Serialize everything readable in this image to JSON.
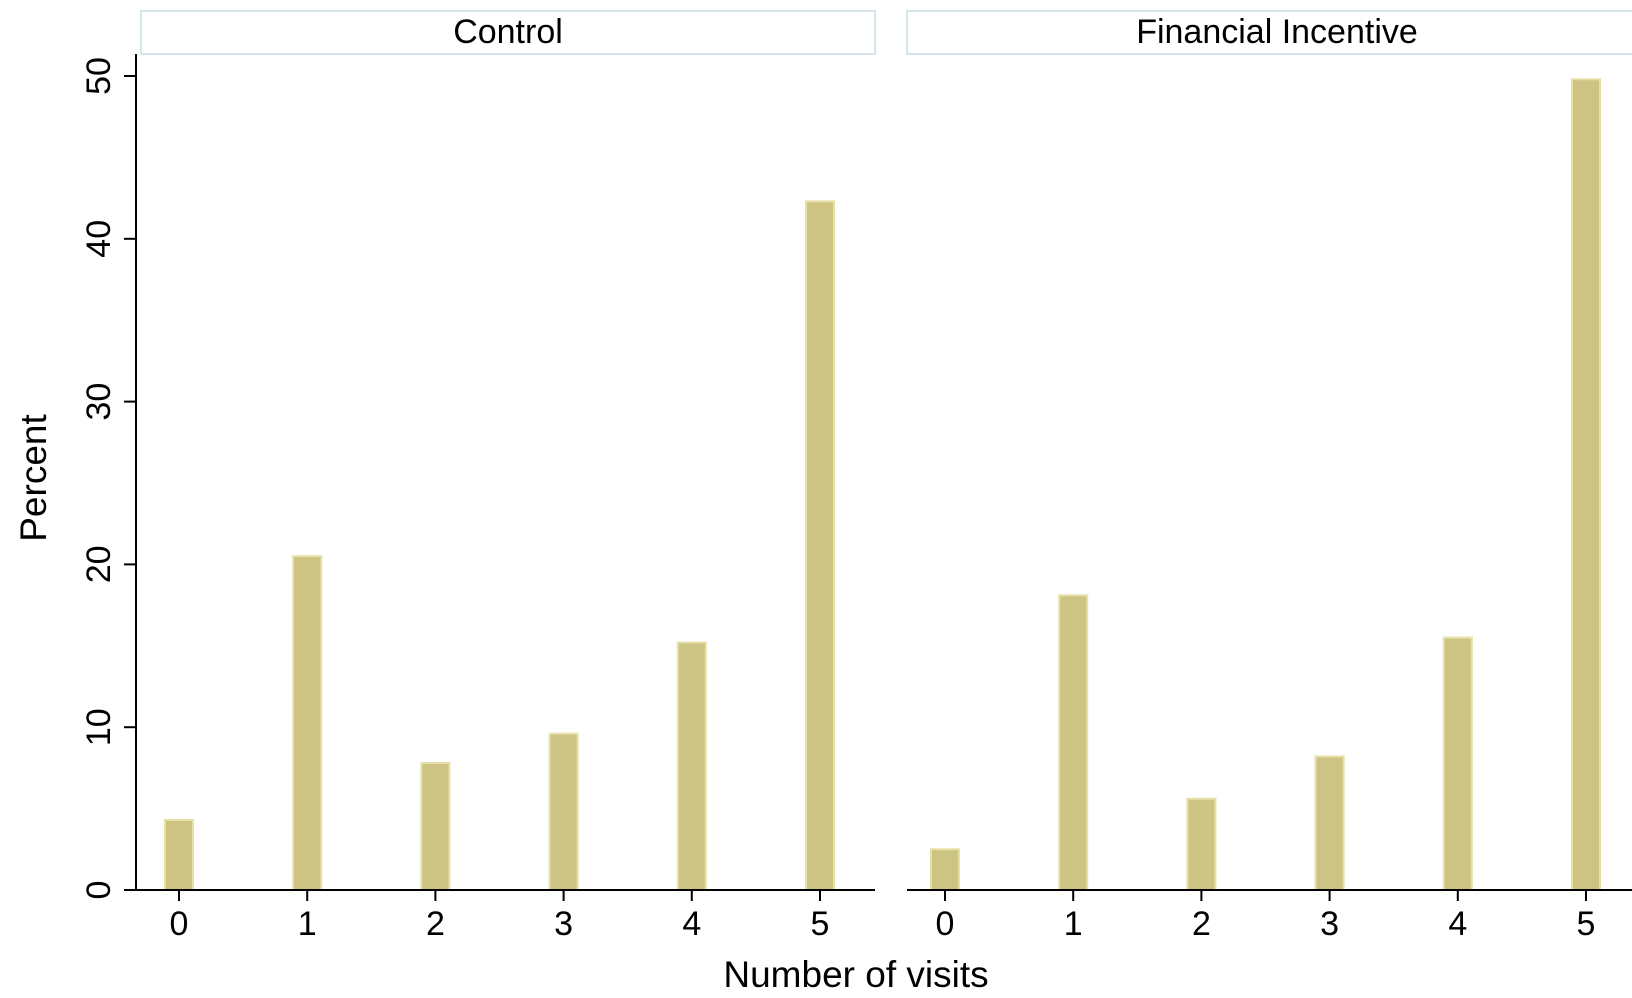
{
  "chart_data": {
    "type": "bar",
    "ylabel": "Percent",
    "xlabel": "Number of visits",
    "ylim": [
      0,
      50
    ],
    "yticks": [
      0,
      10,
      20,
      30,
      40,
      50
    ],
    "categories": [
      "0",
      "1",
      "2",
      "3",
      "4",
      "5"
    ],
    "panels": [
      {
        "title": "Control",
        "values": [
          4.3,
          20.5,
          7.8,
          9.6,
          15.2,
          42.3
        ]
      },
      {
        "title": "Financial Incentive",
        "values": [
          2.5,
          18.1,
          5.6,
          8.2,
          15.5,
          49.8
        ]
      }
    ],
    "bar_color": "#cdc484",
    "bar_edge_color": "#e6dfa6",
    "header_border_color": "#d5e4ea",
    "grid": false,
    "legend": "none"
  }
}
